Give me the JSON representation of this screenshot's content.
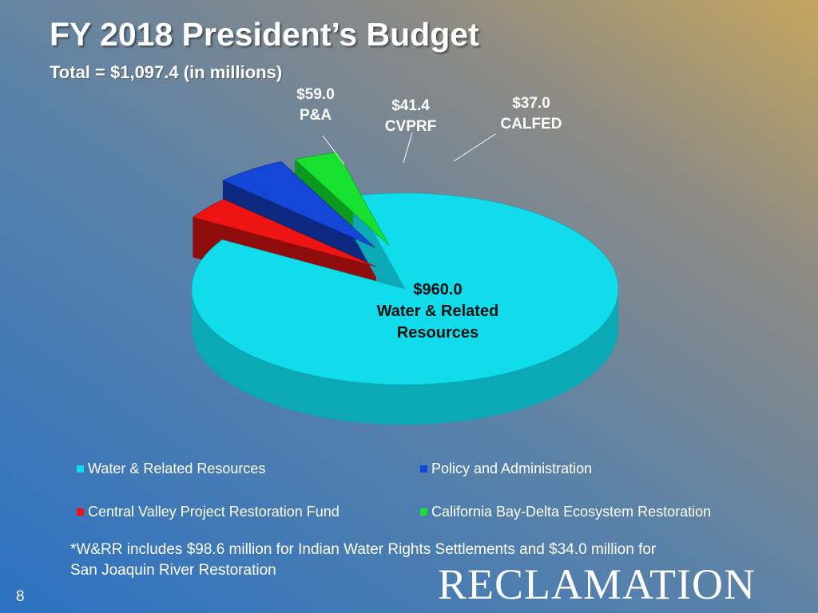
{
  "slide": {
    "title": "FY 2018 President’s Budget",
    "subtitle": "Total = $1,097.4  (in millions)",
    "footnote_line1": "*W&RR includes $98.6 million for Indian Water Rights Settlements and $34.0 million for",
    "footnote_line2": "San Joaquin River Restoration",
    "page_number": "8",
    "logo_text": "RECLAMATION"
  },
  "chart_data": {
    "type": "pie",
    "title": "FY 2018 President’s Budget",
    "subtitle": "Total = $1,097.4  (in millions)",
    "total": 1097.4,
    "slices": [
      {
        "name": "Water & Related Resources",
        "value": 960.0,
        "label_value": "$960.0",
        "label_name_1": "Water & Related",
        "label_name_2": "Resources",
        "color": "#10dcec",
        "side_color": "#0aa9b5"
      },
      {
        "name": "Central Valley Project Restoration Fund",
        "value": 41.4,
        "label_value": "$41.4",
        "label_name_1": "CVPRF",
        "label_name_2": "",
        "color": "#ee1414",
        "side_color": "#8e0c0c"
      },
      {
        "name": "Policy and Administration",
        "value": 59.0,
        "label_value": "$59.0",
        "label_name_1": "P&A",
        "label_name_2": "",
        "color": "#1446d8",
        "side_color": "#0c2880"
      },
      {
        "name": "California Bay-Delta Ecosystem Restoration",
        "value": 37.0,
        "label_value": "$37.0",
        "label_name_1": "CALFED",
        "label_name_2": "",
        "color": "#18e030",
        "side_color": "#0c9a1e"
      }
    ],
    "legend": {
      "position": "bottom",
      "items": [
        {
          "label": "Water & Related Resources",
          "color": "#10dcec"
        },
        {
          "label": "Policy and Administration",
          "color": "#1446d8"
        },
        {
          "label": "Central Valley Project Restoration Fund",
          "color": "#ee1414"
        },
        {
          "label": "California Bay-Delta Ecosystem Restoration",
          "color": "#18e030"
        }
      ]
    }
  }
}
